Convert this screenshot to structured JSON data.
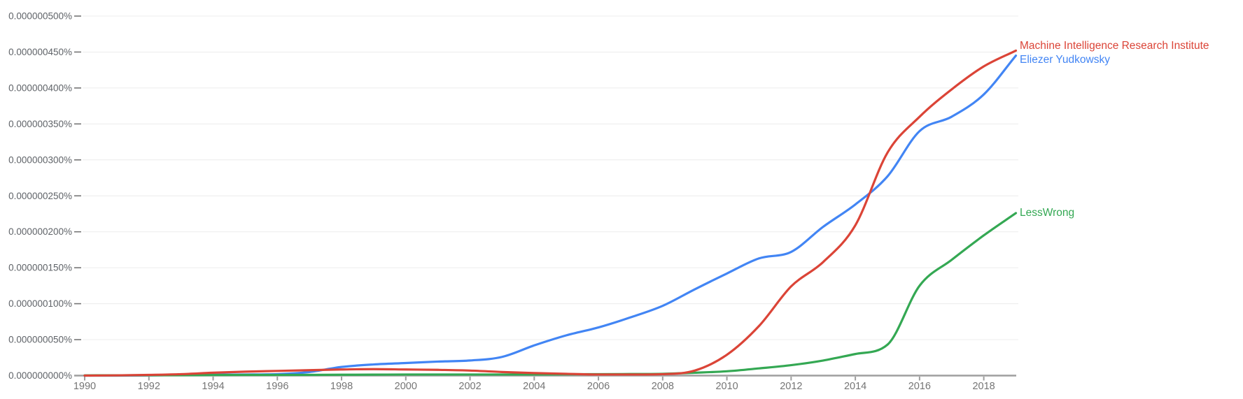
{
  "chart_data": {
    "type": "line",
    "title": "",
    "xlabel": "",
    "ylabel": "",
    "value_unit": "1e-9 percent (0.000000001%)",
    "x_range": [
      1990,
      2019
    ],
    "x": [
      1990,
      1991,
      1992,
      1993,
      1994,
      1995,
      1996,
      1997,
      1998,
      1999,
      2000,
      2001,
      2002,
      2003,
      2004,
      2005,
      2006,
      2007,
      2008,
      2009,
      2010,
      2011,
      2012,
      2013,
      2014,
      2015,
      2016,
      2017,
      2018,
      2019
    ],
    "xticks": [
      1990,
      1992,
      1994,
      1996,
      1998,
      2000,
      2002,
      2004,
      2006,
      2008,
      2010,
      2012,
      2014,
      2016,
      2018
    ],
    "ylim": [
      0,
      500
    ],
    "ytick_step": 50,
    "ytick_labels": [
      "0.000000000%",
      "0.000000050%",
      "0.000000100%",
      "0.000000150%",
      "0.000000200%",
      "0.000000250%",
      "0.000000300%",
      "0.000000350%",
      "0.000000400%",
      "0.000000450%",
      "0.000000500%"
    ],
    "grid": "horizontal",
    "legend_position": "labels-at-line-ends-right",
    "series": [
      {
        "name": "Machine Intelligence Research Institute",
        "color": "#db4437",
        "values": [
          0,
          0.3,
          1,
          2,
          4,
          5.5,
          6.5,
          7.5,
          8.5,
          9,
          8.5,
          8,
          7,
          5,
          3.5,
          2.5,
          1.5,
          1.5,
          2,
          7,
          29,
          69,
          124,
          158,
          209,
          310,
          360,
          398,
          430,
          452
        ]
      },
      {
        "name": "Eliezer Yudkowsky",
        "color": "#4285f4",
        "values": [
          0,
          0,
          0.3,
          0.8,
          1.2,
          1.5,
          2,
          5,
          12,
          15.5,
          17.5,
          19.5,
          21,
          26,
          42,
          56,
          67,
          81,
          97,
          120,
          142,
          163,
          172,
          207,
          238,
          277,
          340,
          360,
          391,
          445
        ]
      },
      {
        "name": "LessWrong",
        "color": "#34a853",
        "values": [
          0.3,
          0.4,
          0.5,
          0.6,
          0.8,
          1,
          1,
          1,
          1.2,
          1.3,
          1.5,
          1.5,
          1.5,
          1.5,
          1.5,
          1.8,
          2,
          2.2,
          2.5,
          4,
          6,
          10,
          14.5,
          21,
          30,
          43,
          125,
          161,
          195,
          226
        ]
      }
    ],
    "axis_colors": {
      "grid": "#ececec",
      "axis_line": "#9e9e9e",
      "y_label_text": "#5f6368",
      "x_label_text": "#757575"
    }
  }
}
